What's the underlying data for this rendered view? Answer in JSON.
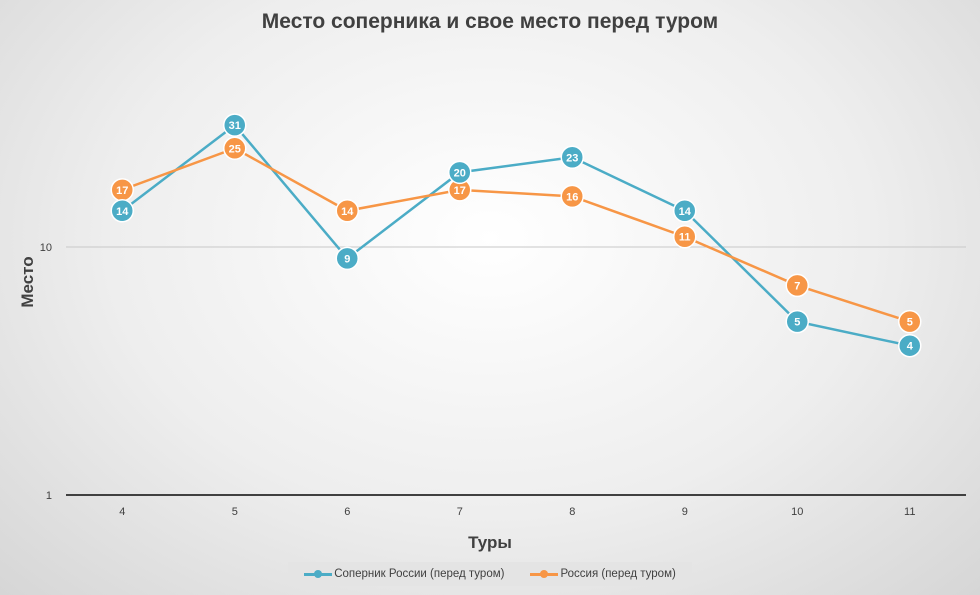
{
  "chart_data": {
    "type": "line",
    "title": "Место соперника и свое место перед туром",
    "xlabel": "Туры",
    "ylabel": "Место",
    "categories": [
      "4",
      "5",
      "6",
      "7",
      "8",
      "9",
      "10",
      "11"
    ],
    "y_scale": "log",
    "ylim": [
      1,
      56
    ],
    "y_ticks": [
      "1",
      "10"
    ],
    "grid": true,
    "legend_position": "bottom",
    "series": [
      {
        "name": "Соперник России (перед туром)",
        "color": "#4bacc6",
        "values": [
          14,
          31,
          9,
          20,
          23,
          14,
          5,
          4
        ]
      },
      {
        "name": "Россия (перед туром)",
        "color": "#f79646",
        "values": [
          17,
          25,
          14,
          17,
          16,
          11,
          7,
          5
        ]
      }
    ]
  }
}
